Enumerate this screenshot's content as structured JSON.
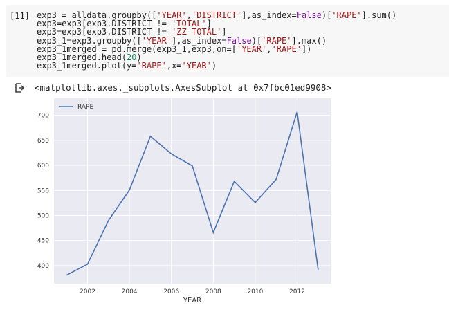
{
  "cell": {
    "prompt": "[11]",
    "lines": [
      [
        {
          "t": "exp3 = alldata.groupby(["
        },
        {
          "t": "'YEAR'",
          "c": "s"
        },
        {
          "t": ","
        },
        {
          "t": "'DISTRICT'",
          "c": "s"
        },
        {
          "t": "],as_index="
        },
        {
          "t": "False",
          "c": "k"
        },
        {
          "t": ")["
        },
        {
          "t": "'RAPE'",
          "c": "s"
        },
        {
          "t": "].sum()"
        }
      ],
      [
        {
          "t": "exp3=exp3[exp3.DISTRICT != "
        },
        {
          "t": "'TOTAL'",
          "c": "s"
        },
        {
          "t": "]"
        }
      ],
      [
        {
          "t": "exp3=exp3[exp3.DISTRICT != "
        },
        {
          "t": "'ZZ TOTAL'",
          "c": "s"
        },
        {
          "t": "]"
        }
      ],
      [
        {
          "t": "exp3_1=exp3.groupby(["
        },
        {
          "t": "'YEAR'",
          "c": "s"
        },
        {
          "t": "],as_index="
        },
        {
          "t": "False",
          "c": "k"
        },
        {
          "t": ")["
        },
        {
          "t": "'RAPE'",
          "c": "s"
        },
        {
          "t": "].max()"
        }
      ],
      [
        {
          "t": "exp3_1merged = pd.merge(exp3_1,exp3,on=["
        },
        {
          "t": "'YEAR'",
          "c": "s"
        },
        {
          "t": ","
        },
        {
          "t": "'RAPE'",
          "c": "s"
        },
        {
          "t": "])"
        }
      ],
      [
        {
          "t": "exp3_1merged.head("
        },
        {
          "t": "20",
          "c": "n"
        },
        {
          "t": ")"
        }
      ],
      [
        {
          "t": "exp3_1merged.plot(y="
        },
        {
          "t": "'RAPE'",
          "c": "s"
        },
        {
          "t": ",x="
        },
        {
          "t": "'YEAR'",
          "c": "s"
        },
        {
          "t": ")"
        }
      ]
    ]
  },
  "output": {
    "text": "<matplotlib.axes._subplots.AxesSubplot at 0x7fbc01ed9908>",
    "icon": "output-arrow-icon"
  },
  "colors": {
    "line": "#4c72b0",
    "axes_bg": "#eaeaf2",
    "grid": "#ffffff"
  },
  "chart_data": {
    "type": "line",
    "xlabel": "YEAR",
    "ylabel": "",
    "legend": "upper-left",
    "grid": true,
    "x_ticks": [
      2002,
      2004,
      2006,
      2008,
      2010,
      2012
    ],
    "y_ticks": [
      400,
      450,
      500,
      550,
      600,
      650,
      700
    ],
    "xlim": [
      2000.4,
      2013.6
    ],
    "ylim": [
      364,
      734
    ],
    "series": [
      {
        "name": "RAPE",
        "x": [
          2001,
          2002,
          2003,
          2004,
          2005,
          2006,
          2007,
          2008,
          2009,
          2010,
          2011,
          2012,
          2013
        ],
        "y": [
          381,
          403,
          490,
          551,
          658,
          623,
          599,
          466,
          568,
          526,
          572,
          707,
          392
        ]
      }
    ]
  }
}
